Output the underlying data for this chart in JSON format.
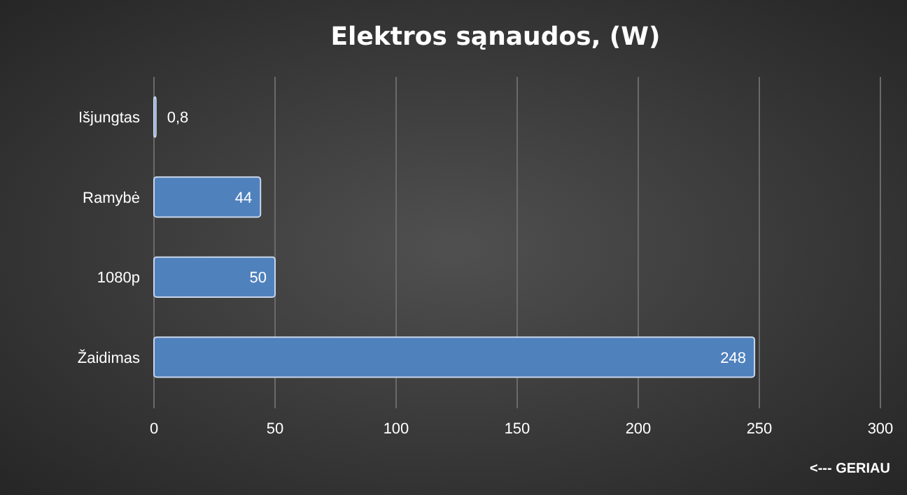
{
  "chart_data": {
    "type": "bar",
    "orientation": "horizontal",
    "title": "Elektros sąnaudos,  (W)",
    "categories": [
      "Išjungtas",
      "Ramybė",
      "1080p",
      "Žaidimas"
    ],
    "values": [
      0.8,
      44,
      50,
      248
    ],
    "color": "#4f81bd",
    "value_labels": [
      "0,8",
      "44",
      "50",
      "248"
    ],
    "xlim": [
      0,
      300
    ],
    "xticks": [
      0,
      50,
      100,
      150,
      200,
      250,
      300
    ],
    "grid": "x",
    "annotations": [
      "<--- GERIAU"
    ]
  }
}
